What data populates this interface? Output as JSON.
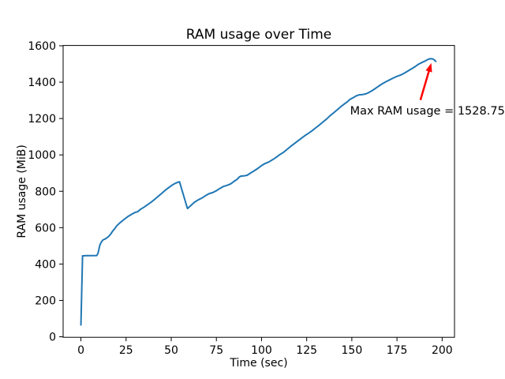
{
  "chart_data": {
    "type": "line",
    "title": "RAM usage over Time",
    "xlabel": "Time (sec)",
    "ylabel": "RAM usage (MiB)",
    "grid": false,
    "legend": null,
    "line_color": "#1f77b4",
    "background_color": "#ffffff",
    "xlim": [
      -9.85,
      206.85
    ],
    "ylim": [
      -2.9,
      1601.65
    ],
    "xticks": [
      0,
      25,
      50,
      75,
      100,
      125,
      150,
      175,
      200
    ],
    "yticks": [
      0,
      200,
      400,
      600,
      800,
      1000,
      1200,
      1400,
      1600
    ],
    "max_ram_usage": 1528.75,
    "annotation": {
      "text": "Max RAM usage = 1528.75",
      "color": "#ff0000",
      "text_xy": [
        149,
        1243
      ],
      "arrow_from": [
        188,
        1302
      ],
      "arrow_to": [
        194,
        1505
      ]
    },
    "series": [
      {
        "name": "RAM usage",
        "points": [
          [
            0,
            65
          ],
          [
            0.9,
            445
          ],
          [
            3,
            446
          ],
          [
            6,
            446
          ],
          [
            8.8,
            447
          ],
          [
            9.5,
            460
          ],
          [
            10.5,
            505
          ],
          [
            11.5,
            524
          ],
          [
            12.3,
            533
          ],
          [
            13.5,
            538
          ],
          [
            14.5,
            545
          ],
          [
            15.5,
            553
          ],
          [
            16.5,
            565
          ],
          [
            17.5,
            580
          ],
          [
            18.5,
            592
          ],
          [
            20,
            612
          ],
          [
            22,
            630
          ],
          [
            24,
            646
          ],
          [
            26,
            661
          ],
          [
            28,
            673
          ],
          [
            30,
            684
          ],
          [
            31.5,
            688
          ],
          [
            33,
            701
          ],
          [
            35,
            713
          ],
          [
            37,
            727
          ],
          [
            39,
            741
          ],
          [
            41,
            757
          ],
          [
            43,
            774
          ],
          [
            45,
            791
          ],
          [
            47,
            808
          ],
          [
            49,
            823
          ],
          [
            51,
            837
          ],
          [
            52.5,
            845
          ],
          [
            54,
            851
          ],
          [
            54.6,
            852
          ],
          [
            59,
            705
          ],
          [
            61,
            723
          ],
          [
            63,
            741
          ],
          [
            65,
            753
          ],
          [
            67,
            763
          ],
          [
            69,
            776
          ],
          [
            71,
            787
          ],
          [
            73,
            793
          ],
          [
            75,
            803
          ],
          [
            77,
            816
          ],
          [
            79,
            827
          ],
          [
            81,
            833
          ],
          [
            83,
            841
          ],
          [
            85,
            856
          ],
          [
            86.5,
            866
          ],
          [
            87.5,
            877
          ],
          [
            88.5,
            883
          ],
          [
            90.5,
            885
          ],
          [
            92,
            888
          ],
          [
            94,
            901
          ],
          [
            96,
            913
          ],
          [
            98,
            926
          ],
          [
            100,
            941
          ],
          [
            102,
            953
          ],
          [
            104,
            961
          ],
          [
            106,
            973
          ],
          [
            108,
            986
          ],
          [
            110,
            1001
          ],
          [
            112,
            1013
          ],
          [
            114,
            1029
          ],
          [
            116,
            1046
          ],
          [
            118,
            1061
          ],
          [
            120,
            1076
          ],
          [
            122,
            1091
          ],
          [
            124,
            1106
          ],
          [
            126,
            1119
          ],
          [
            128,
            1133
          ],
          [
            130,
            1149
          ],
          [
            132,
            1164
          ],
          [
            134,
            1181
          ],
          [
            136,
            1197
          ],
          [
            138,
            1216
          ],
          [
            140,
            1232
          ],
          [
            142,
            1249
          ],
          [
            144,
            1266
          ],
          [
            146,
            1281
          ],
          [
            147.5,
            1292
          ],
          [
            149,
            1305
          ],
          [
            151,
            1316
          ],
          [
            152.5,
            1325
          ],
          [
            154,
            1330
          ],
          [
            156,
            1332
          ],
          [
            157.5,
            1335
          ],
          [
            159,
            1341
          ],
          [
            161,
            1352
          ],
          [
            163,
            1365
          ],
          [
            165,
            1379
          ],
          [
            167,
            1392
          ],
          [
            169,
            1403
          ],
          [
            171,
            1413
          ],
          [
            173,
            1423
          ],
          [
            175,
            1432
          ],
          [
            177,
            1439
          ],
          [
            179,
            1449
          ],
          [
            181,
            1461
          ],
          [
            183,
            1473
          ],
          [
            185,
            1485
          ],
          [
            187,
            1499
          ],
          [
            189,
            1509
          ],
          [
            190.5,
            1516
          ],
          [
            192,
            1524
          ],
          [
            193.2,
            1528.75
          ],
          [
            194.6,
            1528
          ],
          [
            195.5,
            1524
          ],
          [
            196.5,
            1514
          ]
        ]
      }
    ]
  }
}
